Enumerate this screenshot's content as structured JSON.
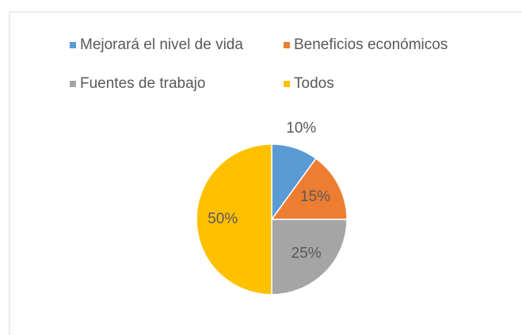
{
  "chart_data": {
    "type": "pie",
    "categories": [
      "Mejorará el nivel de vida",
      "Beneficios económicos",
      "Fuentes de trabajo",
      "Todos"
    ],
    "values": [
      10,
      15,
      25,
      50
    ],
    "value_labels": [
      "10%",
      "15%",
      "25%",
      "50%"
    ],
    "colors": [
      "#5b9bd5",
      "#ed7d31",
      "#a5a5a5",
      "#ffc000"
    ],
    "legend": "top"
  }
}
